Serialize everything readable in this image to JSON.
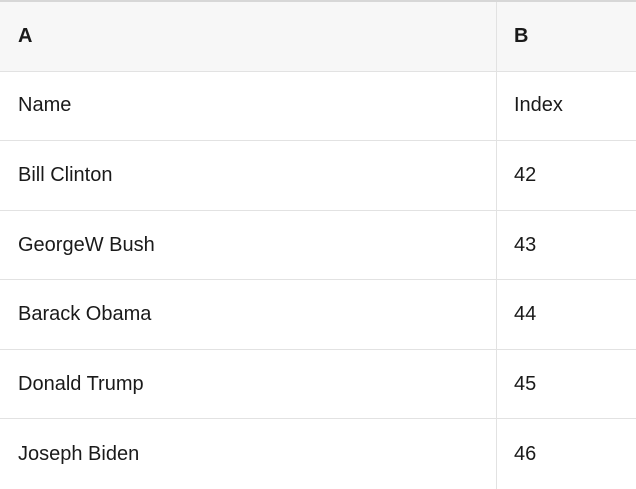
{
  "table": {
    "column_letters": [
      "A",
      "B"
    ],
    "rows": [
      {
        "a": "Name",
        "b": "Index"
      },
      {
        "a": "Bill Clinton",
        "b": "42"
      },
      {
        "a": "GeorgeW Bush",
        "b": "43"
      },
      {
        "a": "Barack Obama",
        "b": "44"
      },
      {
        "a": "Donald Trump",
        "b": "45"
      },
      {
        "a": "Joseph Biden",
        "b": "46"
      }
    ]
  },
  "colors": {
    "header_background": "#f7f7f7",
    "grid_border": "#e2e2e2",
    "top_border": "#d7d7d7",
    "text": "#1a1a1a"
  }
}
